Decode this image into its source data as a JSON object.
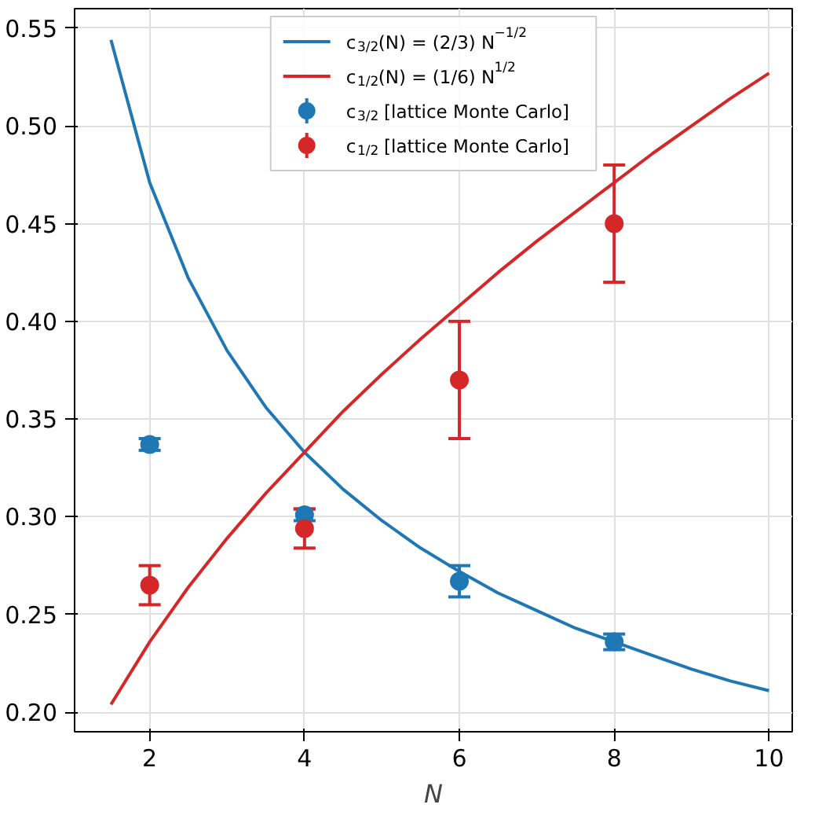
{
  "chart_data": {
    "type": "line",
    "xlabel": "N",
    "xlim": [
      1.03,
      10.3
    ],
    "ylim": [
      0.19,
      0.56
    ],
    "xticks": [
      2,
      4,
      6,
      8,
      10
    ],
    "yticks": [
      {
        "value": 0.2,
        "label": "0.20"
      },
      {
        "value": 0.25,
        "label": "0.25"
      },
      {
        "value": 0.3,
        "label": "0.30"
      },
      {
        "value": 0.35,
        "label": "0.35"
      },
      {
        "value": 0.4,
        "label": "0.40"
      },
      {
        "value": 0.45,
        "label": "0.45"
      },
      {
        "value": 0.5,
        "label": "0.50"
      },
      {
        "value": 0.55,
        "label": "0.55"
      }
    ],
    "grid": true,
    "legend": "top",
    "marker": "none",
    "line_style": "solid",
    "series": [
      {
        "name": "c$_{3/2}$(N) = (2/3) N$^{−1/2}$",
        "color": "#1f77b4",
        "x": [
          1.5,
          2,
          2.5,
          3,
          3.5,
          4,
          4.5,
          5,
          5.5,
          6,
          6.5,
          7,
          7.5,
          8,
          8.5,
          9,
          9.5,
          10
        ],
        "values": [
          0.544,
          0.471,
          0.422,
          0.385,
          0.356,
          0.333,
          0.314,
          0.298,
          0.284,
          0.272,
          0.261,
          0.252,
          0.243,
          0.236,
          0.229,
          0.222,
          0.216,
          0.211
        ]
      },
      {
        "name": "c$_{1/2}$(N) = (1/6) N$^{1/2}$",
        "color": "#d62728",
        "x": [
          1.5,
          2,
          2.5,
          3,
          3.5,
          4,
          4.5,
          5,
          5.5,
          6,
          6.5,
          7,
          7.5,
          8,
          8.5,
          9,
          9.5,
          10
        ],
        "values": [
          0.204,
          0.236,
          0.264,
          0.289,
          0.312,
          0.333,
          0.354,
          0.373,
          0.391,
          0.408,
          0.425,
          0.441,
          0.456,
          0.471,
          0.486,
          0.5,
          0.514,
          0.527
        ]
      },
      {
        "name": "c$_{3/2}$ [lattice Monte Carlo]",
        "color": "#1f77b4",
        "type": "scatter",
        "marker": "circle",
        "x": [
          2,
          4,
          6,
          8
        ],
        "values": [
          0.337,
          0.301,
          0.267,
          0.236
        ],
        "errors": [
          0.003,
          0.003,
          0.008,
          0.004
        ]
      },
      {
        "name": "c$_{1/2}$ [lattice Monte Carlo]",
        "color": "#d62728",
        "type": "scatter",
        "marker": "circle",
        "x": [
          2,
          4,
          6,
          8
        ],
        "values": [
          0.265,
          0.294,
          0.37,
          0.45
        ],
        "errors": [
          0.01,
          0.01,
          0.03,
          0.03
        ]
      }
    ]
  }
}
